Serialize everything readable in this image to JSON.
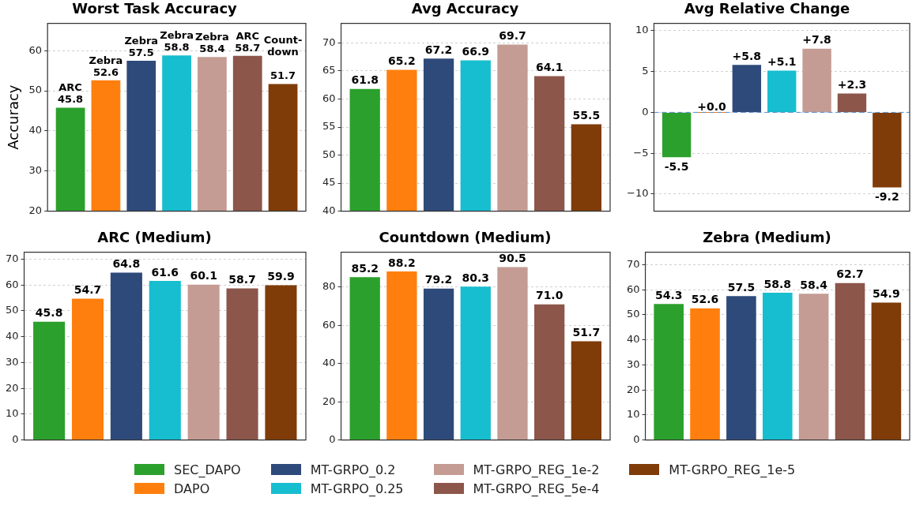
{
  "chart_data": [
    {
      "type": "bar",
      "title": "Worst Task Accuracy",
      "ylabel": "Accuracy",
      "categories": [
        null
      ],
      "ylim": [
        20,
        66.8
      ],
      "yticks": [
        20,
        30,
        40,
        50,
        60
      ],
      "grid": "y",
      "legend": "bottom",
      "series": [
        {
          "name": "SEC_DAPO",
          "color": "#2ca02c",
          "values": [
            45.8
          ],
          "value_labels": [
            "ARC\n45.8"
          ]
        },
        {
          "name": "DAPO",
          "color": "#ff7f0e",
          "values": [
            52.6
          ],
          "value_labels": [
            "Zebra\n52.6"
          ]
        },
        {
          "name": "MT-GRPO_0.2",
          "color": "#2e4a7a",
          "values": [
            57.5
          ],
          "value_labels": [
            "Zebra\n57.5"
          ]
        },
        {
          "name": "MT-GRPO_0.25",
          "color": "#17becf",
          "values": [
            58.8
          ],
          "value_labels": [
            "Zebra\n58.8"
          ]
        },
        {
          "name": "MT-GRPO_REG_1e-2",
          "color": "#c49c94",
          "values": [
            58.4
          ],
          "value_labels": [
            "Zebra\n58.4"
          ]
        },
        {
          "name": "MT-GRPO_REG_5e-4",
          "color": "#8c564b",
          "values": [
            58.7
          ],
          "value_labels": [
            "ARC\n58.7"
          ]
        },
        {
          "name": "MT-GRPO_REG_1e-5",
          "color": "#7f3b08",
          "values": [
            51.7
          ],
          "value_labels": [
            "Count-\ndown\n\n51.7"
          ]
        }
      ]
    },
    {
      "type": "bar",
      "title": "Avg Accuracy",
      "categories": [
        null
      ],
      "ylim": [
        40,
        73.5
      ],
      "yticks": [
        40,
        45,
        50,
        55,
        60,
        65,
        70
      ],
      "grid": "y",
      "data_labels": true,
      "series": [
        {
          "color": "#2ca02c",
          "values": [
            61.8
          ]
        },
        {
          "color": "#ff7f0e",
          "values": [
            65.2
          ]
        },
        {
          "color": "#2e4a7a",
          "values": [
            67.2
          ]
        },
        {
          "color": "#17becf",
          "values": [
            66.9
          ]
        },
        {
          "color": "#c49c94",
          "values": [
            69.7
          ]
        },
        {
          "color": "#8c564b",
          "values": [
            64.1
          ]
        },
        {
          "color": "#7f3b08",
          "values": [
            55.5
          ]
        }
      ]
    },
    {
      "type": "bar",
      "title": "Avg Relative Change",
      "categories": [
        null
      ],
      "ylim": [
        -12.1,
        10.9
      ],
      "yticks": [
        -10,
        -5,
        0,
        5,
        10
      ],
      "grid": "y",
      "ref_lines": [
        {
          "axis": "y",
          "value": 0,
          "color": "#4f8fd0",
          "line_style": "dashed"
        }
      ],
      "series": [
        {
          "color": "#2ca02c",
          "values": [
            -5.5
          ],
          "value_labels": [
            "-5.5"
          ]
        },
        {
          "color": "#ff7f0e",
          "values": [
            0.0
          ],
          "value_labels": [
            "+0.0"
          ]
        },
        {
          "color": "#2e4a7a",
          "values": [
            5.8
          ],
          "value_labels": [
            "+5.8"
          ]
        },
        {
          "color": "#17becf",
          "values": [
            5.1
          ],
          "value_labels": [
            "+5.1"
          ]
        },
        {
          "color": "#c49c94",
          "values": [
            7.8
          ],
          "value_labels": [
            "+7.8"
          ]
        },
        {
          "color": "#8c564b",
          "values": [
            2.3
          ],
          "value_labels": [
            "+2.3"
          ]
        },
        {
          "color": "#7f3b08",
          "values": [
            -9.2
          ],
          "value_labels": [
            "-9.2"
          ]
        }
      ]
    },
    {
      "type": "bar",
      "title": "ARC (Medium)",
      "categories": [
        null
      ],
      "ylim": [
        0,
        72.7
      ],
      "yticks": [
        0,
        10,
        20,
        30,
        40,
        50,
        60,
        70
      ],
      "grid": "y",
      "data_labels": true,
      "series": [
        {
          "color": "#2ca02c",
          "values": [
            45.8
          ]
        },
        {
          "color": "#ff7f0e",
          "values": [
            54.7
          ]
        },
        {
          "color": "#2e4a7a",
          "values": [
            64.8
          ]
        },
        {
          "color": "#17becf",
          "values": [
            61.6
          ]
        },
        {
          "color": "#c49c94",
          "values": [
            60.1
          ]
        },
        {
          "color": "#8c564b",
          "values": [
            58.7
          ]
        },
        {
          "color": "#7f3b08",
          "values": [
            59.9
          ]
        }
      ]
    },
    {
      "type": "bar",
      "title": "Countdown (Medium)",
      "categories": [
        null
      ],
      "ylim": [
        0,
        98.3
      ],
      "yticks": [
        0,
        20,
        40,
        60,
        80
      ],
      "grid": "y",
      "series": [
        {
          "color": "#2ca02c",
          "values": [
            85.2
          ],
          "value_labels": [
            "85.2"
          ]
        },
        {
          "color": "#ff7f0e",
          "values": [
            88.2
          ],
          "value_labels": [
            "88.2"
          ]
        },
        {
          "color": "#2e4a7a",
          "values": [
            79.2
          ],
          "value_labels": [
            "79.2"
          ]
        },
        {
          "color": "#17becf",
          "values": [
            80.3
          ],
          "value_labels": [
            "80.3"
          ]
        },
        {
          "color": "#c49c94",
          "values": [
            90.5
          ],
          "value_labels": [
            "90.5"
          ]
        },
        {
          "color": "#8c564b",
          "values": [
            71.0
          ],
          "value_labels": [
            "71.0"
          ]
        },
        {
          "color": "#7f3b08",
          "values": [
            51.7
          ],
          "value_labels": [
            "51.7"
          ]
        }
      ]
    },
    {
      "type": "bar",
      "title": "Zebra (Medium)",
      "categories": [
        null
      ],
      "ylim": [
        0,
        75
      ],
      "yticks": [
        0,
        10,
        20,
        30,
        40,
        50,
        60,
        70
      ],
      "grid": "y",
      "data_labels": true,
      "series": [
        {
          "color": "#2ca02c",
          "values": [
            54.3
          ]
        },
        {
          "color": "#ff7f0e",
          "values": [
            52.6
          ]
        },
        {
          "color": "#2e4a7a",
          "values": [
            57.5
          ]
        },
        {
          "color": "#17becf",
          "values": [
            58.8
          ]
        },
        {
          "color": "#c49c94",
          "values": [
            58.4
          ]
        },
        {
          "color": "#8c564b",
          "values": [
            62.7
          ]
        },
        {
          "color": "#7f3b08",
          "values": [
            54.9
          ]
        }
      ]
    }
  ]
}
